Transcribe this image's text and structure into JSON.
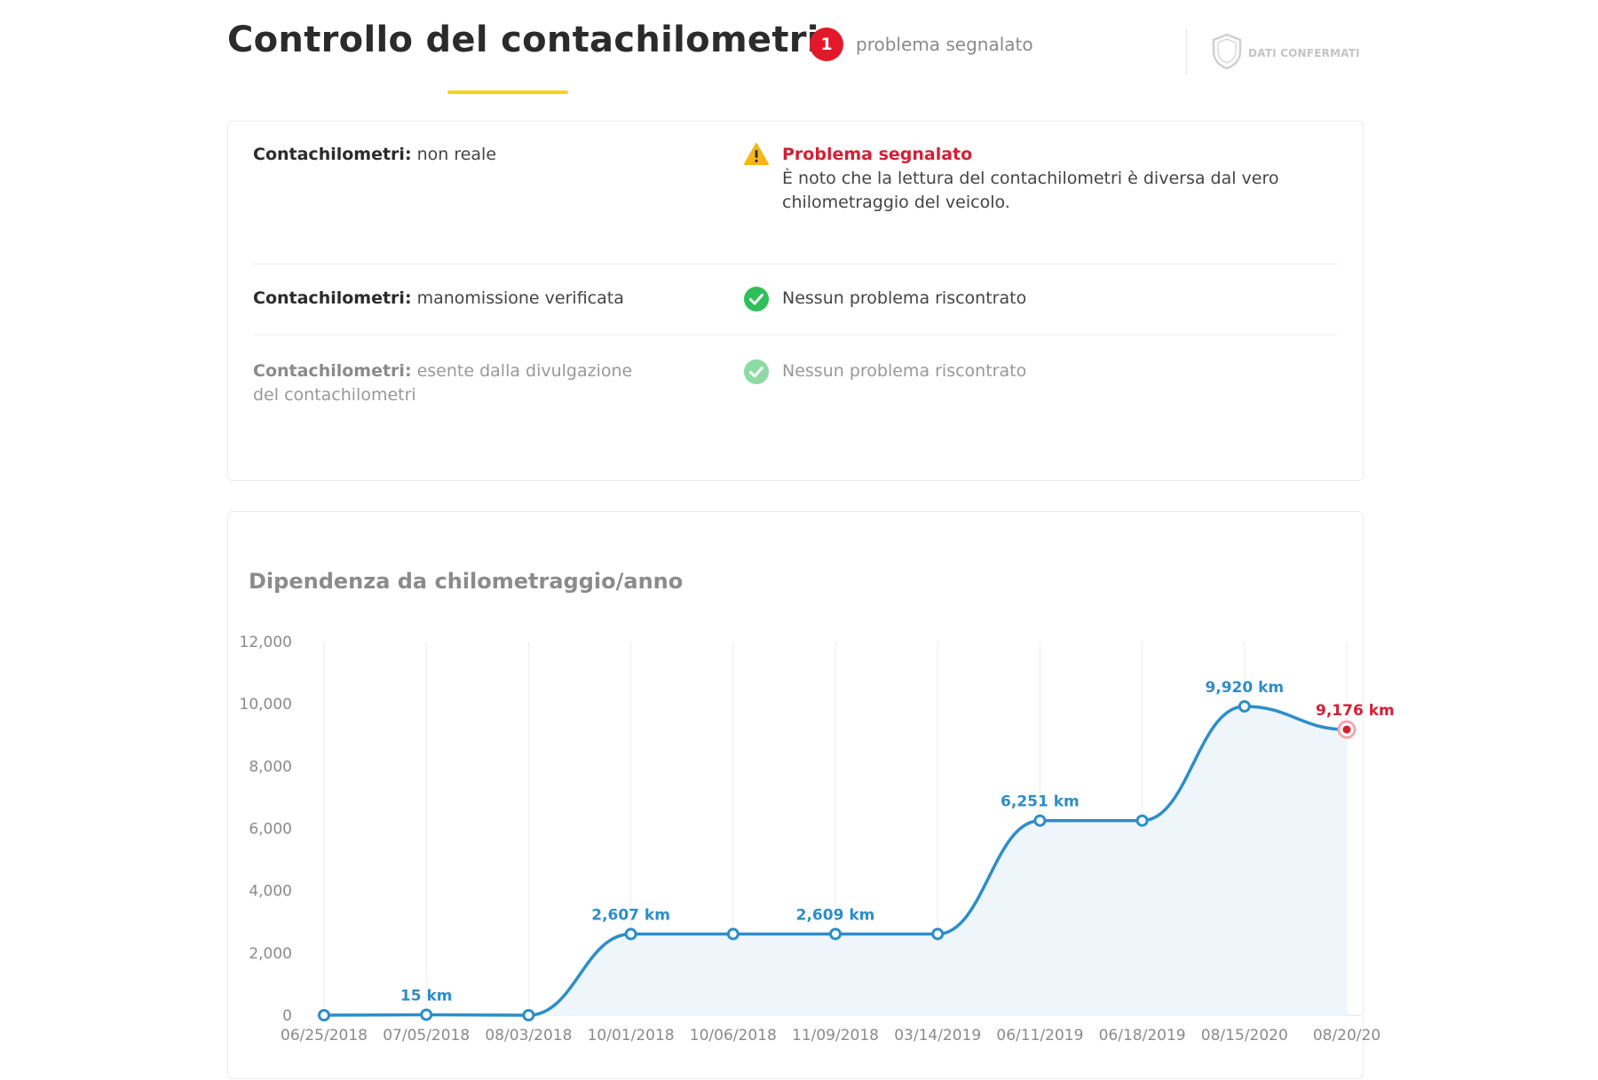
{
  "header": {
    "title": "Controllo del contachilometri",
    "issue_count": "1",
    "issue_label": "problema segnalato",
    "confirmed_label": "DATI CONFERMATI"
  },
  "checks": [
    {
      "name_bold": "Contachilometri:",
      "name_rest": " non reale",
      "status": "warning",
      "status_title": "Problema segnalato",
      "status_text": "È noto che la lettura del contachilometri è diversa dal vero chilometraggio del veicolo."
    },
    {
      "name_bold": "Contachilometri:",
      "name_rest": " manomissione verificata",
      "status": "ok",
      "status_text": "Nessun problema riscontrato"
    },
    {
      "name_bold": "Contachilometri:",
      "name_rest": " esente dalla divulgazione del contachilometri",
      "status": "ok",
      "status_text": "Nessun problema riscontrato"
    }
  ],
  "colors": {
    "accent_yellow": "#f6d415",
    "alert_red": "#d41f35",
    "ok_green": "#2fbf5a",
    "line_blue": "#2c8ec9",
    "area_fill": "#eef6fb"
  },
  "chart_data": {
    "type": "line",
    "title": "Dipendenza da chilometraggio/anno",
    "ylim": [
      0,
      12000
    ],
    "yticks": [
      "0",
      "2,000",
      "4,000",
      "6,000",
      "8,000",
      "10,000",
      "12,000"
    ],
    "x": [
      "06/25/2018",
      "07/05/2018",
      "08/03/2018",
      "10/01/2018",
      "10/06/2018",
      "11/09/2018",
      "03/14/2019",
      "06/11/2019",
      "06/18/2019",
      "08/15/2020",
      "08/20/2020"
    ],
    "x_tick_labels": [
      "06/25/2018",
      "07/05/2018",
      "08/03/2018",
      "10/01/2018",
      "10/06/2018",
      "11/09/2018",
      "03/14/2019",
      "06/11/2019",
      "06/18/2019",
      "08/15/2020",
      "08/20/20"
    ],
    "values": [
      0,
      15,
      0,
      2607,
      2607,
      2609,
      2609,
      6251,
      6251,
      9920,
      9176
    ],
    "data_labels": [
      "",
      "15 km",
      "",
      "2,607 km",
      "",
      "2,609 km",
      "",
      "6,251 km",
      "",
      "9,920 km",
      "9,176 km"
    ],
    "alert_index": 10,
    "grid": "vertical",
    "area_fill": true
  }
}
